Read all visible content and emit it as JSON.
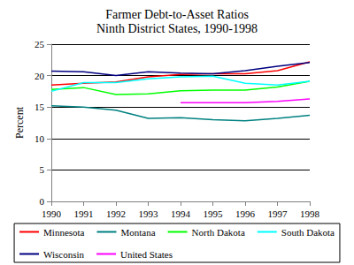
{
  "chart_data": {
    "type": "line",
    "title": "Farmer Debt-to-Asset Ratios",
    "subtitle": "Ninth District States, 1990-1998",
    "y_label": "Percent",
    "categories": [
      "1990",
      "1991",
      "1992",
      "1993",
      "1994",
      "1995",
      "1996",
      "1997",
      "1998"
    ],
    "series": [
      {
        "name": "Minnesota",
        "color": "#ff0000",
        "values": [
          18.5,
          18.8,
          19.0,
          19.8,
          20.2,
          20.3,
          20.3,
          20.8,
          22.2
        ]
      },
      {
        "name": "Montana",
        "color": "#008080",
        "values": [
          15.2,
          15.0,
          14.5,
          13.2,
          13.3,
          13.0,
          12.8,
          13.2,
          13.7
        ]
      },
      {
        "name": "North Dakota",
        "color": "#00ff00",
        "values": [
          17.8,
          18.1,
          17.0,
          17.1,
          17.6,
          17.7,
          17.7,
          18.2,
          19.1
        ]
      },
      {
        "name": "South Dakota",
        "color": "#00ffff",
        "values": [
          17.5,
          18.9,
          18.9,
          19.5,
          19.8,
          19.9,
          18.8,
          18.5,
          19.1
        ]
      },
      {
        "name": "Wisconsin",
        "color": "#000080",
        "values": [
          20.7,
          20.6,
          20.0,
          20.6,
          20.4,
          20.3,
          20.8,
          21.5,
          22.1
        ]
      },
      {
        "name": "United States",
        "color": "#ff00ff",
        "values": [
          null,
          null,
          null,
          null,
          15.7,
          15.7,
          15.7,
          15.9,
          16.3
        ]
      }
    ],
    "ylim": [
      0,
      25
    ],
    "yticks": [
      0,
      5,
      10,
      15,
      20,
      25
    ],
    "grid": true,
    "legend": "bottom",
    "marker": "none"
  }
}
